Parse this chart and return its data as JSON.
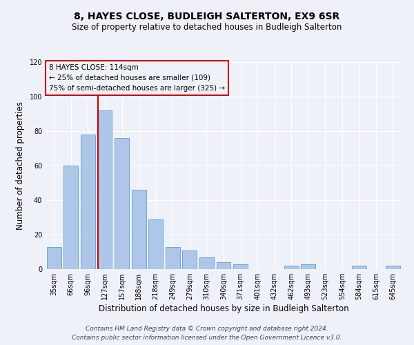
{
  "title": "8, HAYES CLOSE, BUDLEIGH SALTERTON, EX9 6SR",
  "subtitle": "Size of property relative to detached houses in Budleigh Salterton",
  "xlabel": "Distribution of detached houses by size in Budleigh Salterton",
  "ylabel": "Number of detached properties",
  "categories": [
    "35sqm",
    "66sqm",
    "96sqm",
    "127sqm",
    "157sqm",
    "188sqm",
    "218sqm",
    "249sqm",
    "279sqm",
    "310sqm",
    "340sqm",
    "371sqm",
    "401sqm",
    "432sqm",
    "462sqm",
    "493sqm",
    "523sqm",
    "554sqm",
    "584sqm",
    "615sqm",
    "645sqm"
  ],
  "values": [
    13,
    60,
    78,
    92,
    76,
    46,
    29,
    13,
    11,
    7,
    4,
    3,
    0,
    0,
    2,
    3,
    0,
    0,
    2,
    0,
    2
  ],
  "bar_color": "#aec6e8",
  "bar_edge_color": "#5a9fd4",
  "vline_color": "#cc0000",
  "annotation_line1": "8 HAYES CLOSE: 114sqm",
  "annotation_line2": "← 25% of detached houses are smaller (109)",
  "annotation_line3": "75% of semi-detached houses are larger (325) →",
  "annotation_box_color": "#cc0000",
  "ylim": [
    0,
    120
  ],
  "yticks": [
    0,
    20,
    40,
    60,
    80,
    100,
    120
  ],
  "footer1": "Contains HM Land Registry data © Crown copyright and database right 2024.",
  "footer2": "Contains public sector information licensed under the Open Government Licence v3.0.",
  "background_color": "#eef2f8",
  "grid_color": "#ffffff",
  "title_fontsize": 10,
  "subtitle_fontsize": 8.5,
  "axis_label_fontsize": 8.5,
  "tick_fontsize": 7,
  "annotation_fontsize": 7.5,
  "footer_fontsize": 6.5
}
